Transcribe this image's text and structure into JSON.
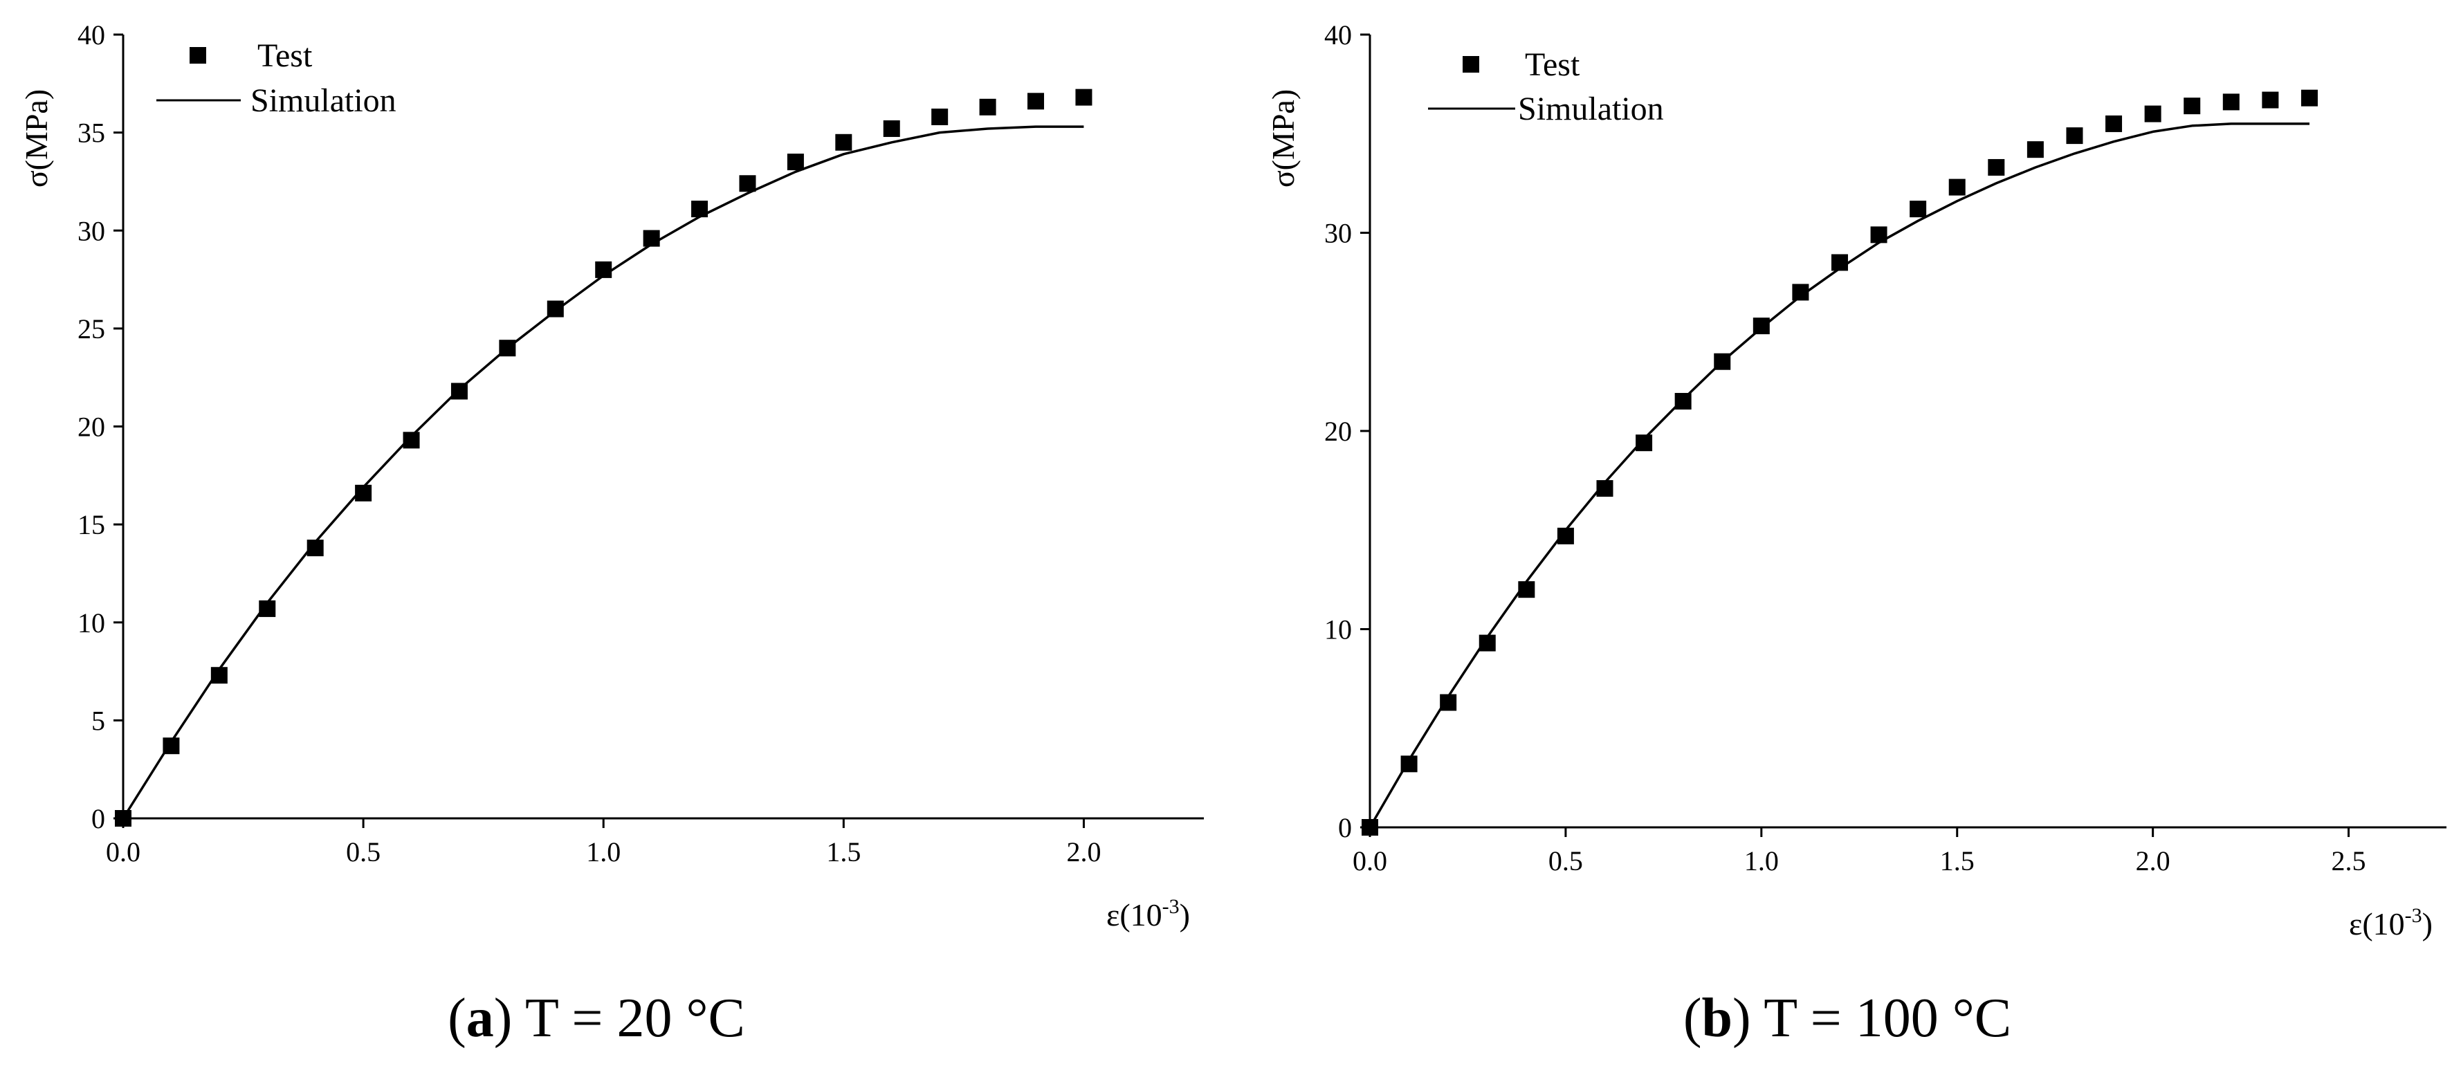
{
  "chart_data": [
    {
      "type": "scatter",
      "caption_letter": "a",
      "caption_rest": " T = 20 °C",
      "xlabel": "ε(10",
      "xlabel_sup": "-3",
      "xlabel_end": ")",
      "ylabel": "σ(MPa)",
      "xlim": [
        0,
        2.25
      ],
      "ylim": [
        0,
        40
      ],
      "xticks": [
        0,
        0.5,
        1.0,
        1.5,
        2.0
      ],
      "xtick_labels": [
        "0.0",
        "0.5",
        "1.0",
        "1.5",
        "2.0"
      ],
      "yticks": [
        0,
        5,
        10,
        15,
        20,
        25,
        30,
        35,
        40
      ],
      "ytick_labels": [
        "0",
        "5",
        "10",
        "15",
        "20",
        "25",
        "30",
        "35",
        "40"
      ],
      "legend": [
        "Test",
        "Simulation"
      ],
      "series": [
        {
          "name": "Test",
          "kind": "markers",
          "x": [
            0,
            0.1,
            0.2,
            0.3,
            0.4,
            0.5,
            0.6,
            0.7,
            0.8,
            0.9,
            1.0,
            1.1,
            1.2,
            1.3,
            1.4,
            1.5,
            1.6,
            1.7,
            1.8,
            1.9,
            2.0
          ],
          "y": [
            0,
            3.7,
            7.3,
            10.7,
            13.8,
            16.6,
            19.3,
            21.8,
            24.0,
            26.0,
            28.0,
            29.6,
            31.1,
            32.4,
            33.5,
            34.5,
            35.2,
            35.8,
            36.3,
            36.6,
            36.8
          ]
        },
        {
          "name": "Simulation",
          "kind": "line",
          "x": [
            0,
            0.1,
            0.2,
            0.3,
            0.4,
            0.5,
            0.6,
            0.7,
            0.8,
            0.9,
            1.0,
            1.1,
            1.2,
            1.3,
            1.4,
            1.5,
            1.6,
            1.7,
            1.8,
            1.9,
            2.0
          ],
          "y": [
            0,
            3.9,
            7.6,
            11.0,
            14.1,
            16.9,
            19.5,
            21.9,
            24.0,
            25.9,
            27.7,
            29.3,
            30.7,
            31.9,
            33.0,
            33.9,
            34.5,
            35.0,
            35.2,
            35.3,
            35.3
          ]
        }
      ]
    },
    {
      "type": "scatter",
      "caption_letter": "b",
      "caption_rest": " T = 100 °C",
      "xlabel": "ε(10",
      "xlabel_sup": "-3",
      "xlabel_end": ")",
      "ylabel": "σ(MPa)",
      "xlim": [
        0,
        2.75
      ],
      "ylim": [
        0,
        40
      ],
      "xticks": [
        0,
        0.5,
        1.0,
        1.5,
        2.0,
        2.5
      ],
      "xtick_labels": [
        "0.0",
        "0.5",
        "1.0",
        "1.5",
        "2.0",
        "2.5"
      ],
      "yticks": [
        0,
        10,
        20,
        30,
        40
      ],
      "ytick_labels": [
        "0",
        "10",
        "20",
        "30",
        "40"
      ],
      "legend": [
        "Test",
        "Simulation"
      ],
      "series": [
        {
          "name": "Test",
          "kind": "markers",
          "x": [
            0,
            0.1,
            0.2,
            0.3,
            0.4,
            0.5,
            0.6,
            0.7,
            0.8,
            0.9,
            1.0,
            1.1,
            1.2,
            1.3,
            1.4,
            1.5,
            1.6,
            1.7,
            1.8,
            1.9,
            2.0,
            2.1,
            2.2,
            2.3,
            2.4
          ],
          "y": [
            0,
            3.2,
            6.3,
            9.3,
            12.0,
            14.7,
            17.1,
            19.4,
            21.5,
            23.5,
            25.3,
            27.0,
            28.5,
            29.9,
            31.2,
            32.3,
            33.3,
            34.2,
            34.9,
            35.5,
            36.0,
            36.4,
            36.6,
            36.7,
            36.8
          ]
        },
        {
          "name": "Simulation",
          "kind": "line",
          "x": [
            0,
            0.1,
            0.2,
            0.3,
            0.4,
            0.5,
            0.6,
            0.7,
            0.8,
            0.9,
            1.0,
            1.1,
            1.2,
            1.3,
            1.4,
            1.5,
            1.6,
            1.7,
            1.8,
            1.9,
            2.0,
            2.1,
            2.2,
            2.3,
            2.4
          ],
          "y": [
            0,
            3.4,
            6.6,
            9.6,
            12.4,
            15.0,
            17.4,
            19.6,
            21.6,
            23.5,
            25.2,
            26.8,
            28.2,
            29.5,
            30.6,
            31.6,
            32.5,
            33.3,
            34.0,
            34.6,
            35.1,
            35.4,
            35.5,
            35.5,
            35.5
          ]
        }
      ]
    }
  ]
}
